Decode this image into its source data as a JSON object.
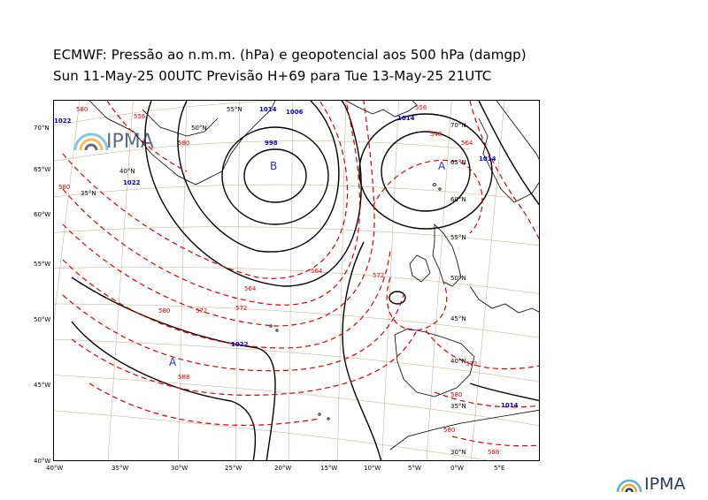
{
  "header": {
    "title_line1": "ECMWF:  Pressão ao n.m.m. (hPa) e geopotencial aos 500 hPa (damgp)",
    "title_line2": "Sun 11-May-25 00UTC Previsão H+69 para Tue 13-May-25 21UTC"
  },
  "map": {
    "left_axis_labels": [
      "70°N",
      "65°W",
      "60°W",
      "55°W",
      "50°W",
      "45°W",
      "40°W"
    ],
    "bottom_axis_labels": [
      "40°W",
      "35°W",
      "30°W",
      "25°W",
      "20°W",
      "15°W",
      "10°W",
      "5°W",
      "0°W",
      "5°E"
    ],
    "grid_labels": [
      "55°N",
      "50°N",
      "40°N",
      "35°N",
      "70°N",
      "65°N",
      "60°N",
      "55°N",
      "50°N",
      "45°N",
      "40°N",
      "35°N",
      "30°N"
    ],
    "isobar_labels": [
      "1022",
      "1014",
      "1006",
      "998",
      "1014",
      "1022",
      "1022",
      "1014",
      "1014"
    ],
    "geopotential_labels": [
      "580",
      "580",
      "572",
      "564",
      "572",
      "580",
      "588",
      "556",
      "548",
      "564",
      "572",
      "580",
      "588",
      "556",
      "580",
      "572",
      "564",
      "580"
    ],
    "pressure_centers": [
      {
        "type": "B",
        "label": "B"
      },
      {
        "type": "A",
        "label": "A"
      },
      {
        "type": "A",
        "label": "A"
      }
    ],
    "colors": {
      "isobar": "#000000",
      "geopotential": "#dd0000",
      "coastline": "#000000",
      "graticule": "#b8a888",
      "isobar_label": "#0000cc",
      "center_label": "#2233cc"
    }
  },
  "logos": {
    "inside": "IPMA",
    "corner": "IPMA"
  }
}
